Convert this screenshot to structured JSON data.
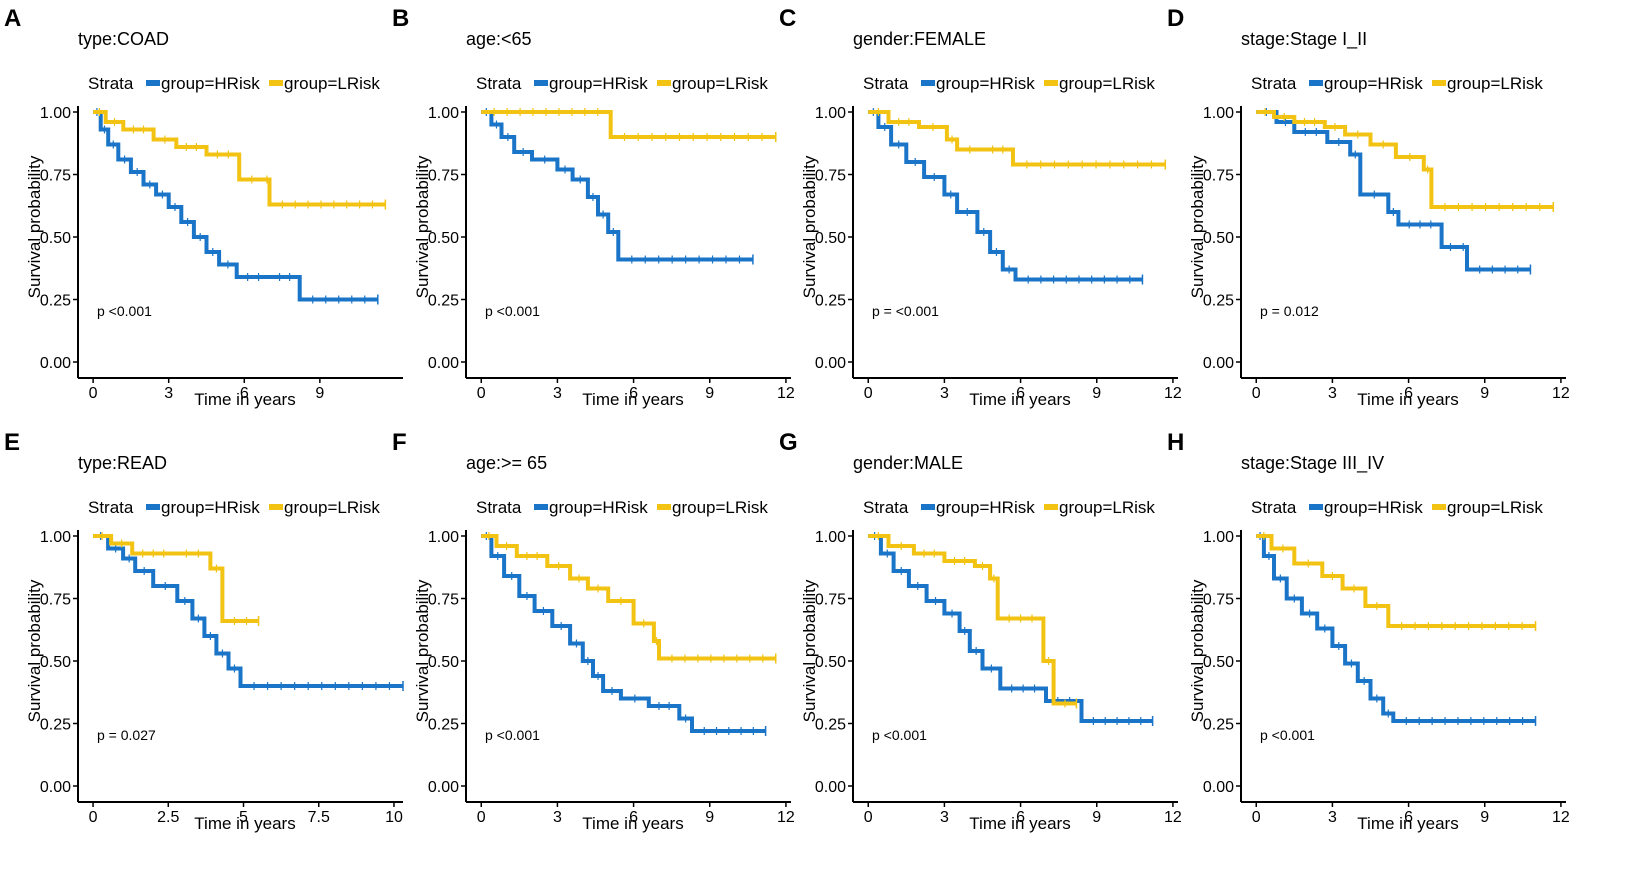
{
  "colors": {
    "hrisk": "#1a74c7",
    "lrisk": "#f2c313",
    "axis": "#000000"
  },
  "legend_title": "Strata",
  "chart_data": [
    {
      "type": "line",
      "panel_label": "A",
      "title": "type:COAD",
      "legend": [
        "group=HRisk",
        "group=LRisk"
      ],
      "xlabel": "Time in years",
      "ylabel": "Survival probability",
      "xlim": [
        -0.6,
        12.3
      ],
      "ylim": [
        0,
        1
      ],
      "xticks": [
        0,
        3,
        6,
        9
      ],
      "xtick_labels": [
        "0",
        "3",
        "6",
        "9"
      ],
      "yticks": [
        0,
        0.25,
        0.5,
        0.75,
        1.0
      ],
      "ytick_labels": [
        "0.00",
        "0.25",
        "0.50",
        "0.75",
        "1.00"
      ],
      "pvalue": "p <0.001",
      "series": [
        {
          "name": "group=HRisk",
          "x": [
            0,
            0.3,
            0.6,
            1.0,
            1.5,
            2.0,
            2.5,
            3.0,
            3.5,
            4.0,
            4.5,
            5.0,
            5.7,
            7.0,
            8.2,
            11.3
          ],
          "y": [
            1.0,
            0.93,
            0.87,
            0.81,
            0.76,
            0.71,
            0.67,
            0.62,
            0.56,
            0.5,
            0.44,
            0.39,
            0.34,
            0.34,
            0.25,
            0.25
          ]
        },
        {
          "name": "group=LRisk",
          "x": [
            0,
            0.5,
            1.2,
            2.4,
            3.3,
            4.5,
            5.8,
            6.8,
            7.0,
            11.6
          ],
          "y": [
            1.0,
            0.96,
            0.93,
            0.89,
            0.86,
            0.83,
            0.73,
            0.73,
            0.63,
            0.63
          ]
        }
      ]
    },
    {
      "type": "line",
      "panel_label": "B",
      "title": "age:<65",
      "legend": [
        "group=HRisk",
        "group=LRisk"
      ],
      "xlabel": "Time in years",
      "ylabel": "Survival probability",
      "xlim": [
        -0.6,
        12.2
      ],
      "ylim": [
        0,
        1
      ],
      "xticks": [
        0,
        3,
        6,
        9,
        12
      ],
      "xtick_labels": [
        "0",
        "3",
        "6",
        "9",
        "12"
      ],
      "yticks": [
        0,
        0.25,
        0.5,
        0.75,
        1.0
      ],
      "ytick_labels": [
        "0.00",
        "0.25",
        "0.50",
        "0.75",
        "1.00"
      ],
      "pvalue": "p <0.001",
      "series": [
        {
          "name": "group=HRisk",
          "x": [
            0,
            0.4,
            0.8,
            1.3,
            2.0,
            3.0,
            3.6,
            4.2,
            4.6,
            5.0,
            5.4,
            10.7
          ],
          "y": [
            1.0,
            0.95,
            0.9,
            0.84,
            0.81,
            0.77,
            0.73,
            0.66,
            0.59,
            0.52,
            0.41,
            0.41
          ]
        },
        {
          "name": "group=LRisk",
          "x": [
            0,
            5.1,
            11.6
          ],
          "y": [
            1.0,
            0.9,
            0.9
          ]
        }
      ]
    },
    {
      "type": "line",
      "panel_label": "C",
      "title": "gender:FEMALE",
      "legend": [
        "group=HRisk",
        "group=LRisk"
      ],
      "xlabel": "Time in years",
      "ylabel": "Survival probability",
      "xlim": [
        -0.6,
        12.2
      ],
      "ylim": [
        0,
        1
      ],
      "xticks": [
        0,
        3,
        6,
        9,
        12
      ],
      "xtick_labels": [
        "0",
        "3",
        "6",
        "9",
        "12"
      ],
      "yticks": [
        0,
        0.25,
        0.5,
        0.75,
        1.0
      ],
      "ytick_labels": [
        "0.00",
        "0.25",
        "0.50",
        "0.75",
        "1.00"
      ],
      "pvalue": "p = <0.001",
      "series": [
        {
          "name": "group=HRisk",
          "x": [
            0,
            0.4,
            0.9,
            1.5,
            2.2,
            3.0,
            3.5,
            4.3,
            4.8,
            5.3,
            5.8,
            10.8
          ],
          "y": [
            1.0,
            0.94,
            0.87,
            0.8,
            0.74,
            0.67,
            0.6,
            0.52,
            0.44,
            0.37,
            0.33,
            0.33
          ]
        },
        {
          "name": "group=LRisk",
          "x": [
            0,
            0.8,
            2.0,
            3.1,
            3.5,
            4.5,
            5.7,
            11.7
          ],
          "y": [
            1.0,
            0.96,
            0.94,
            0.89,
            0.85,
            0.85,
            0.79,
            0.79
          ]
        }
      ]
    },
    {
      "type": "line",
      "panel_label": "D",
      "title": "stage:Stage I_II",
      "legend": [
        "group=HRisk",
        "group=LRisk"
      ],
      "xlabel": "Time in years",
      "ylabel": "Survival probability",
      "xlim": [
        -0.6,
        12.2
      ],
      "ylim": [
        0,
        1
      ],
      "xticks": [
        0,
        3,
        6,
        9,
        12
      ],
      "xtick_labels": [
        "0",
        "3",
        "6",
        "9",
        "12"
      ],
      "yticks": [
        0,
        0.25,
        0.5,
        0.75,
        1.0
      ],
      "ytick_labels": [
        "0.00",
        "0.25",
        "0.50",
        "0.75",
        "1.00"
      ],
      "pvalue": "p = 0.012",
      "series": [
        {
          "name": "group=HRisk",
          "x": [
            0,
            0.8,
            1.5,
            2.8,
            3.7,
            4.1,
            5.2,
            5.6,
            7.3,
            8.0,
            8.3,
            10.8
          ],
          "y": [
            1.0,
            0.96,
            0.92,
            0.88,
            0.83,
            0.67,
            0.6,
            0.55,
            0.46,
            0.46,
            0.37,
            0.37
          ]
        },
        {
          "name": "group=LRisk",
          "x": [
            0,
            0.7,
            1.5,
            2.7,
            3.5,
            4.5,
            5.5,
            6.6,
            6.9,
            11.7
          ],
          "y": [
            1.0,
            0.98,
            0.96,
            0.94,
            0.91,
            0.87,
            0.82,
            0.77,
            0.62,
            0.62
          ]
        }
      ]
    },
    {
      "type": "line",
      "panel_label": "E",
      "title": "type:READ",
      "legend": [
        "group=HRisk",
        "group=LRisk"
      ],
      "xlabel": "Time in years",
      "ylabel": "Survival probability",
      "xlim": [
        -0.5,
        10.3
      ],
      "ylim": [
        0,
        1
      ],
      "xticks": [
        0,
        2.5,
        5,
        7.5,
        10
      ],
      "xtick_labels": [
        "0",
        "2.5",
        "5",
        "7.5",
        "10"
      ],
      "yticks": [
        0,
        0.25,
        0.5,
        0.75,
        1.0
      ],
      "ytick_labels": [
        "0.00",
        "0.25",
        "0.50",
        "0.75",
        "1.00"
      ],
      "pvalue": "p = 0.027",
      "series": [
        {
          "name": "group=HRisk",
          "x": [
            0,
            0.5,
            1.0,
            1.4,
            2.0,
            2.8,
            3.3,
            3.7,
            4.1,
            4.5,
            4.9,
            10.3
          ],
          "y": [
            1.0,
            0.95,
            0.91,
            0.86,
            0.8,
            0.74,
            0.67,
            0.6,
            0.53,
            0.47,
            0.4,
            0.4
          ]
        },
        {
          "name": "group=LRisk",
          "x": [
            0,
            0.6,
            1.3,
            2.7,
            3.9,
            4.3,
            5.5
          ],
          "y": [
            1.0,
            0.97,
            0.93,
            0.93,
            0.87,
            0.66,
            0.66
          ]
        }
      ]
    },
    {
      "type": "line",
      "panel_label": "F",
      "title": "age:>= 65",
      "legend": [
        "group=HRisk",
        "group=LRisk"
      ],
      "xlabel": "Time in years",
      "ylabel": "Survival probability",
      "xlim": [
        -0.6,
        12.2
      ],
      "ylim": [
        0,
        1
      ],
      "xticks": [
        0,
        3,
        6,
        9,
        12
      ],
      "xtick_labels": [
        "0",
        "3",
        "6",
        "9",
        "12"
      ],
      "yticks": [
        0,
        0.25,
        0.5,
        0.75,
        1.0
      ],
      "ytick_labels": [
        "0.00",
        "0.25",
        "0.50",
        "0.75",
        "1.00"
      ],
      "pvalue": "p <0.001",
      "series": [
        {
          "name": "group=HRisk",
          "x": [
            0,
            0.4,
            0.9,
            1.5,
            2.1,
            2.8,
            3.5,
            4.0,
            4.4,
            4.8,
            5.5,
            6.6,
            7.8,
            8.3,
            11.2
          ],
          "y": [
            1.0,
            0.92,
            0.84,
            0.76,
            0.7,
            0.64,
            0.57,
            0.5,
            0.44,
            0.38,
            0.35,
            0.32,
            0.27,
            0.22,
            0.22
          ]
        },
        {
          "name": "group=LRisk",
          "x": [
            0,
            0.6,
            1.4,
            2.6,
            3.5,
            4.2,
            5.0,
            6.0,
            6.8,
            7.0,
            11.6
          ],
          "y": [
            1.0,
            0.96,
            0.92,
            0.88,
            0.83,
            0.79,
            0.74,
            0.65,
            0.58,
            0.51,
            0.51
          ]
        }
      ]
    },
    {
      "type": "line",
      "panel_label": "G",
      "title": "gender:MALE",
      "legend": [
        "group=HRisk",
        "group=LRisk"
      ],
      "xlabel": "Time in years",
      "ylabel": "Survival probability",
      "xlim": [
        -0.6,
        12.2
      ],
      "ylim": [
        0,
        1
      ],
      "xticks": [
        0,
        3,
        6,
        9,
        12
      ],
      "xtick_labels": [
        "0",
        "3",
        "6",
        "9",
        "12"
      ],
      "yticks": [
        0,
        0.25,
        0.5,
        0.75,
        1.0
      ],
      "ytick_labels": [
        "0.00",
        "0.25",
        "0.50",
        "0.75",
        "1.00"
      ],
      "pvalue": "p <0.001",
      "series": [
        {
          "name": "group=HRisk",
          "x": [
            0,
            0.5,
            1.0,
            1.6,
            2.3,
            3.0,
            3.6,
            4.0,
            4.5,
            5.2,
            7.0,
            8.4,
            11.2
          ],
          "y": [
            1.0,
            0.93,
            0.86,
            0.8,
            0.74,
            0.69,
            0.62,
            0.54,
            0.47,
            0.39,
            0.34,
            0.26,
            0.26
          ]
        },
        {
          "name": "group=LRisk",
          "x": [
            0,
            0.8,
            1.8,
            3.0,
            4.2,
            4.8,
            5.1,
            6.9,
            7.3,
            8.2
          ],
          "y": [
            1.0,
            0.96,
            0.93,
            0.9,
            0.88,
            0.83,
            0.67,
            0.5,
            0.33,
            0.33
          ]
        }
      ]
    },
    {
      "type": "line",
      "panel_label": "H",
      "title": "stage:Stage III_IV",
      "legend": [
        "group=HRisk",
        "group=LRisk"
      ],
      "xlabel": "Time in years",
      "ylabel": "Survival probability",
      "xlim": [
        -0.6,
        12.2
      ],
      "ylim": [
        0,
        1
      ],
      "xticks": [
        0,
        3,
        6,
        9,
        12
      ],
      "xtick_labels": [
        "0",
        "3",
        "6",
        "9",
        "12"
      ],
      "yticks": [
        0,
        0.25,
        0.5,
        0.75,
        1.0
      ],
      "ytick_labels": [
        "0.00",
        "0.25",
        "0.50",
        "0.75",
        "1.00"
      ],
      "pvalue": "p <0.001",
      "series": [
        {
          "name": "group=HRisk",
          "x": [
            0,
            0.3,
            0.7,
            1.2,
            1.8,
            2.4,
            3.0,
            3.5,
            4.0,
            4.5,
            5.0,
            5.4,
            11.0
          ],
          "y": [
            1.0,
            0.92,
            0.83,
            0.75,
            0.69,
            0.63,
            0.56,
            0.49,
            0.42,
            0.35,
            0.29,
            0.26,
            0.26
          ]
        },
        {
          "name": "group=LRisk",
          "x": [
            0,
            0.6,
            1.5,
            2.6,
            3.4,
            4.3,
            5.2,
            11.0
          ],
          "y": [
            1.0,
            0.95,
            0.89,
            0.84,
            0.79,
            0.72,
            0.64,
            0.64
          ]
        }
      ]
    }
  ]
}
